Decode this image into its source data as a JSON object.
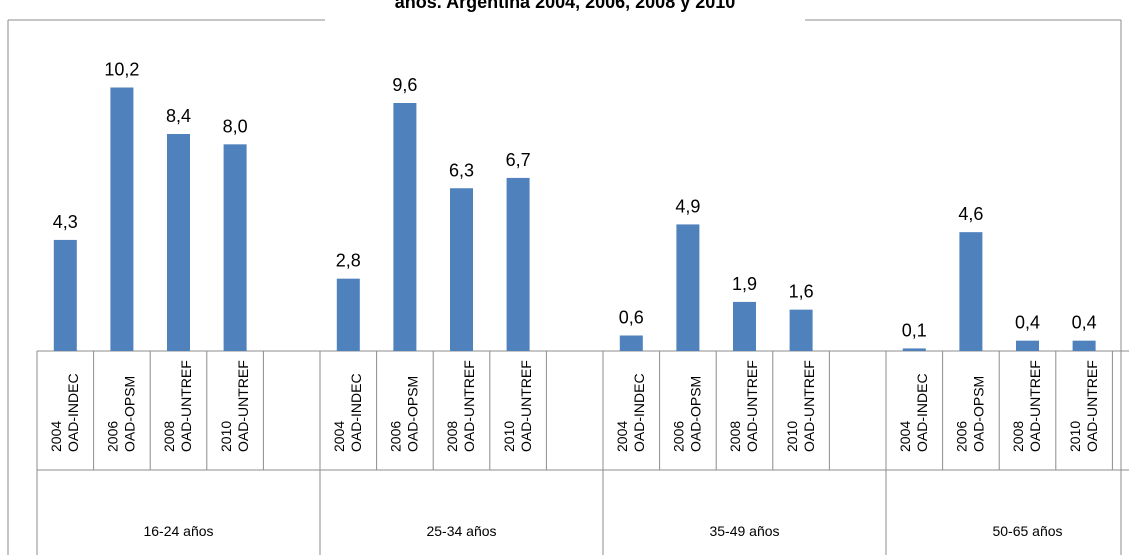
{
  "chart_data": {
    "type": "bar",
    "title": "años. Argentina 2004, 2006, 2008 y 2010",
    "groups": [
      "16-24 años",
      "25-34 años",
      "35-49 años",
      "50-65 años"
    ],
    "categories": [
      [
        "2004",
        "OAD-INDEC"
      ],
      [
        "2006",
        "OAD-OPSM"
      ],
      [
        "2008",
        "OAD-UNTREF"
      ],
      [
        "2010",
        "OAD-UNTREF"
      ],
      null,
      [
        "2004",
        "OAD-INDEC"
      ],
      [
        "2006",
        "OAD-OPSM"
      ],
      [
        "2008",
        "OAD-UNTREF"
      ],
      [
        "2010",
        "OAD-UNTREF"
      ],
      null,
      [
        "2004",
        "OAD-INDEC"
      ],
      [
        "2006",
        "OAD-OPSM"
      ],
      [
        "2008",
        "OAD-UNTREF"
      ],
      [
        "2010",
        "OAD-UNTREF"
      ],
      null,
      [
        "2004",
        "OAD-INDEC"
      ],
      [
        "2006",
        "OAD-OPSM"
      ],
      [
        "2008",
        "OAD-UNTREF"
      ],
      [
        "2010",
        "OAD-UNTREF"
      ],
      null
    ],
    "values": [
      4.3,
      10.2,
      8.4,
      8.0,
      null,
      2.8,
      9.6,
      6.3,
      6.7,
      null,
      0.6,
      4.9,
      1.9,
      1.6,
      null,
      0.1,
      4.6,
      0.4,
      0.4,
      null
    ],
    "value_labels": [
      "4,3",
      "10,2",
      "8,4",
      "8,0",
      null,
      "2,8",
      "9,6",
      "6,3",
      "6,7",
      null,
      "0,6",
      "4,9",
      "1,9",
      "1,6",
      null,
      "0,1",
      "4,6",
      "0,4",
      "0,4",
      null
    ],
    "color": "#4f81bd",
    "ylim": [
      0,
      12
    ]
  }
}
